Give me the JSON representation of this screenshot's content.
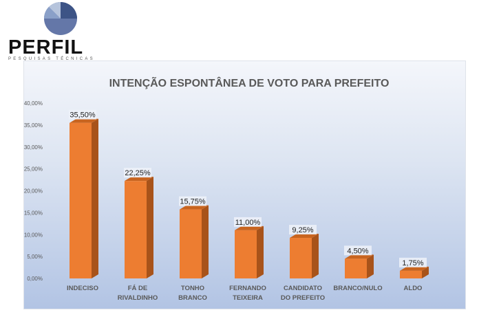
{
  "logo": {
    "text": "PERFIL",
    "subtitle": "PESQUISAS TÉCNICAS"
  },
  "chart_data": {
    "type": "bar",
    "title": "INTENÇÃO ESPONTÂNEA DE VOTO PARA PREFEITO",
    "categories": [
      [
        "INDECISO"
      ],
      [
        "FÁ DE",
        "RIVALDINHO"
      ],
      [
        "TONHO",
        "BRANCO"
      ],
      [
        "FERNANDO",
        "TEIXEIRA"
      ],
      [
        "CANDIDATO",
        "DO PREFEITO"
      ],
      [
        "BRANCO/NULO"
      ],
      [
        "ALDO"
      ]
    ],
    "values": [
      35.5,
      22.25,
      15.75,
      11.0,
      9.25,
      4.5,
      1.75
    ],
    "data_labels": [
      "35,50%",
      "22,25%",
      "15,75%",
      "11,00%",
      "9,25%",
      "4,50%",
      "1,75%"
    ],
    "yticks": [
      "0,00%",
      "5,00%",
      "10,00%",
      "15,00%",
      "20,00%",
      "25,00%",
      "30,00%",
      "35,00%",
      "40,00%"
    ],
    "ylim": [
      0,
      40
    ],
    "bar_color": "#ed7d31",
    "grid": false,
    "legend": "none",
    "style": "3d-column"
  }
}
